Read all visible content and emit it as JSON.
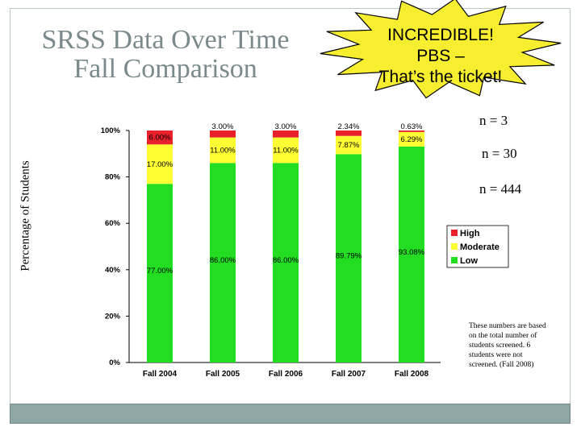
{
  "slide": {
    "title_line1": "SRSS Data Over Time",
    "title_line2": "Fall Comparison",
    "callout_lines": [
      "INCREDIBLE!",
      "PBS –",
      "That’s the ticket!"
    ],
    "n_labels": [
      "n = 3",
      "n = 30",
      "n = 444"
    ],
    "note": "These numbers are based on the total number of students screened. 6 students were not screened. (Fall 2008)"
  },
  "colors": {
    "High": "#e8212a",
    "Moderate": "#ffff33",
    "Low": "#22dd22",
    "callout": "#f7ee2f"
  },
  "chart_data": {
    "type": "bar",
    "stacked": true,
    "categories": [
      "Fall 2004",
      "Fall 2005",
      "Fall 2006",
      "Fall 2007",
      "Fall 2008"
    ],
    "series": [
      {
        "name": "Low",
        "values": [
          77.0,
          86.0,
          86.0,
          89.79,
          93.08
        ],
        "labels": [
          "77.00%",
          "86.00%",
          "86.00%",
          "89.79%",
          "93.08%"
        ]
      },
      {
        "name": "Moderate",
        "values": [
          17.0,
          11.0,
          11.0,
          7.87,
          6.29
        ],
        "labels": [
          "17.00%",
          "11.00%",
          "11.00%",
          "7.87%",
          "6.29%"
        ]
      },
      {
        "name": "High",
        "values": [
          6.0,
          3.0,
          3.0,
          2.34,
          0.63
        ],
        "labels": [
          "6.00%",
          "3.00%",
          "3.00%",
          "2.34%",
          "0.63%"
        ]
      }
    ],
    "ylabel": "Percentage of Students",
    "yticks": [
      "0%",
      "20%",
      "40%",
      "60%",
      "80%",
      "100%"
    ],
    "ylim": [
      0,
      100
    ],
    "legend": [
      "High",
      "Moderate",
      "Low"
    ],
    "legend_position": "right",
    "grid": false
  }
}
